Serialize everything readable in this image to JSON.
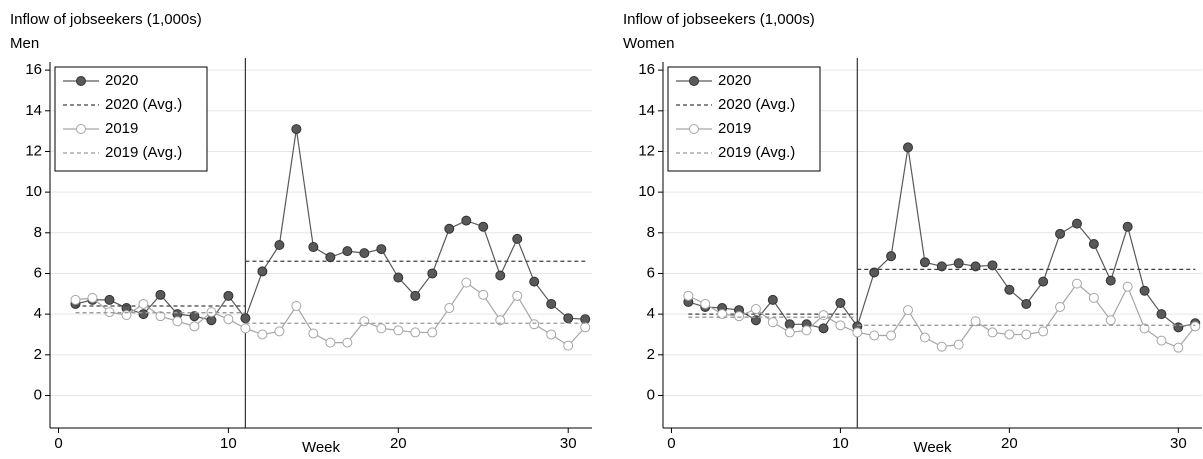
{
  "chart_data": [
    {
      "type": "line",
      "title": "Inflow of jobseekers (1,000s)",
      "subtitle": "Men",
      "x_label": "Week",
      "xlim": [
        -0.5,
        31.4
      ],
      "ylim": [
        -1.6,
        16.4
      ],
      "xticks": [
        0,
        10,
        20,
        30
      ],
      "yticks": [
        0,
        2,
        4,
        6,
        8,
        10,
        12,
        14,
        16
      ],
      "grid": true,
      "vline": 11,
      "legend": "top-left",
      "x": [
        1,
        2,
        3,
        4,
        5,
        6,
        7,
        8,
        9,
        10,
        11,
        12,
        13,
        14,
        15,
        16,
        17,
        18,
        19,
        20,
        21,
        22,
        23,
        24,
        25,
        26,
        27,
        28,
        29,
        30,
        31
      ],
      "series": [
        {
          "name": "2020",
          "color": "#595959",
          "marker": "filled",
          "dash": false,
          "values": [
            4.5,
            4.7,
            4.7,
            4.3,
            4.0,
            4.95,
            4.0,
            3.9,
            3.7,
            4.9,
            3.8,
            6.1,
            7.4,
            13.1,
            7.3,
            6.8,
            7.1,
            7.0,
            7.2,
            5.8,
            4.9,
            6.0,
            8.2,
            8.6,
            8.3,
            5.9,
            7.7,
            5.6,
            4.5,
            3.8,
            3.75
          ]
        },
        {
          "name": "2020 (Avg.)",
          "color": "#404040",
          "marker": "none",
          "dash": true,
          "x": [
            1,
            11,
            11,
            11,
            31
          ],
          "values": [
            4.4,
            4.4,
            null,
            6.6,
            6.6
          ]
        },
        {
          "name": "2019",
          "color": "#a6a6a6",
          "marker": "hollow",
          "dash": false,
          "values": [
            4.7,
            4.8,
            4.1,
            3.95,
            4.5,
            3.9,
            3.65,
            3.4,
            4.1,
            3.75,
            3.3,
            3.0,
            3.15,
            4.4,
            3.05,
            2.6,
            2.6,
            3.65,
            3.3,
            3.2,
            3.1,
            3.1,
            4.3,
            5.55,
            4.95,
            3.7,
            4.9,
            3.5,
            3.0,
            2.45,
            3.35
          ]
        },
        {
          "name": "2019 (Avg.)",
          "color": "#9a9a9a",
          "marker": "none",
          "dash": true,
          "x": [
            1,
            11,
            11,
            11,
            31
          ],
          "values": [
            4.07,
            4.07,
            null,
            3.55,
            3.55
          ]
        }
      ]
    },
    {
      "type": "line",
      "title": "Inflow of jobseekers (1,000s)",
      "subtitle": "Women",
      "x_label": "Week",
      "xlim": [
        -0.5,
        31.4
      ],
      "ylim": [
        -1.6,
        16.4
      ],
      "xticks": [
        0,
        10,
        20,
        30
      ],
      "yticks": [
        0,
        2,
        4,
        6,
        8,
        10,
        12,
        14,
        16
      ],
      "grid": true,
      "vline": 11,
      "legend": "top-left",
      "x": [
        1,
        2,
        3,
        4,
        5,
        6,
        7,
        8,
        9,
        10,
        11,
        12,
        13,
        14,
        15,
        16,
        17,
        18,
        19,
        20,
        21,
        22,
        23,
        24,
        25,
        26,
        27,
        28,
        29,
        30,
        31
      ],
      "series": [
        {
          "name": "2020",
          "color": "#595959",
          "marker": "filled",
          "dash": false,
          "values": [
            4.6,
            4.35,
            4.3,
            4.2,
            3.7,
            4.7,
            3.5,
            3.5,
            3.3,
            4.55,
            3.4,
            6.05,
            6.85,
            12.2,
            6.55,
            6.35,
            6.5,
            6.35,
            6.4,
            5.2,
            4.5,
            5.6,
            7.95,
            8.45,
            7.45,
            5.65,
            8.3,
            5.15,
            4.0,
            3.35,
            3.55
          ]
        },
        {
          "name": "2020 (Avg.)",
          "color": "#404040",
          "marker": "none",
          "dash": true,
          "x": [
            1,
            11,
            11,
            11,
            31
          ],
          "values": [
            4.0,
            4.0,
            null,
            6.2,
            6.2
          ]
        },
        {
          "name": "2019",
          "color": "#a6a6a6",
          "marker": "hollow",
          "dash": false,
          "values": [
            4.9,
            4.5,
            4.0,
            3.9,
            4.25,
            3.6,
            3.1,
            3.2,
            3.95,
            3.45,
            3.1,
            2.95,
            2.95,
            4.2,
            2.85,
            2.4,
            2.5,
            3.65,
            3.1,
            3.0,
            3.0,
            3.15,
            4.35,
            5.5,
            4.8,
            3.7,
            5.35,
            3.3,
            2.7,
            2.35,
            3.4
          ]
        },
        {
          "name": "2019 (Avg.)",
          "color": "#9a9a9a",
          "marker": "none",
          "dash": true,
          "x": [
            1,
            11,
            11,
            11,
            31
          ],
          "values": [
            3.85,
            3.85,
            null,
            3.45,
            3.45
          ]
        }
      ]
    }
  ]
}
